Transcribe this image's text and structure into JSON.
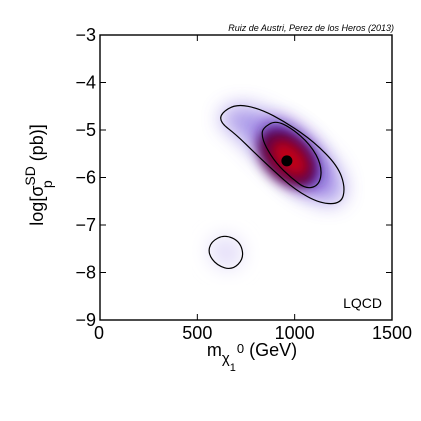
{
  "chart_data": {
    "type": "contour",
    "credit": "Ruiz de Austri, Perez de los Heros (2013)",
    "model_label": "LQCD",
    "xlabel": {
      "main": "m",
      "sub_letter": "χ",
      "sub_sub": "1",
      "sup": "0",
      "unit": " (GeV)"
    },
    "ylabel": {
      "prefix": "log[σ",
      "sub": "p",
      "sup": "SD",
      "suffix": " (pb)]"
    },
    "xlim": [
      0,
      1500
    ],
    "ylim": [
      -9,
      -3
    ],
    "xticks": [
      "0",
      "500",
      "1000",
      "1500"
    ],
    "yticks": [
      "−9",
      "−8",
      "−7",
      "−6",
      "−5",
      "−4",
      "−3"
    ],
    "best_fit_point": {
      "x": 960,
      "y": -5.65
    },
    "regions": [
      {
        "name": "main region, outer contour",
        "points": [
          [
            620,
            -4.65
          ],
          [
            700,
            -4.45
          ],
          [
            820,
            -4.55
          ],
          [
            960,
            -4.85
          ],
          [
            1100,
            -5.25
          ],
          [
            1220,
            -5.75
          ],
          [
            1260,
            -6.2
          ],
          [
            1240,
            -6.55
          ],
          [
            1130,
            -6.55
          ],
          [
            1000,
            -6.25
          ],
          [
            890,
            -5.85
          ],
          [
            800,
            -5.5
          ],
          [
            700,
            -5.1
          ],
          [
            620,
            -4.85
          ]
        ]
      },
      {
        "name": "main region, inner contour",
        "points": [
          [
            840,
            -4.95
          ],
          [
            900,
            -4.8
          ],
          [
            980,
            -4.95
          ],
          [
            1080,
            -5.3
          ],
          [
            1140,
            -5.75
          ],
          [
            1130,
            -6.15
          ],
          [
            1060,
            -6.25
          ],
          [
            980,
            -6.0
          ],
          [
            905,
            -5.7
          ],
          [
            850,
            -5.35
          ],
          [
            830,
            -5.1
          ]
        ]
      },
      {
        "name": "secondary region",
        "points": [
          [
            570,
            -7.35
          ],
          [
            640,
            -7.2
          ],
          [
            720,
            -7.35
          ],
          [
            740,
            -7.7
          ],
          [
            680,
            -7.95
          ],
          [
            600,
            -7.85
          ],
          [
            555,
            -7.6
          ]
        ]
      }
    ],
    "density_core": {
      "x": 960,
      "y": -5.6,
      "color": "#c00018"
    },
    "color_scale": [
      "#ffffff",
      "#e2dcf8",
      "#9f8ae6",
      "#4a12b8",
      "#5a0044",
      "#c00018",
      "#e8001c"
    ]
  }
}
